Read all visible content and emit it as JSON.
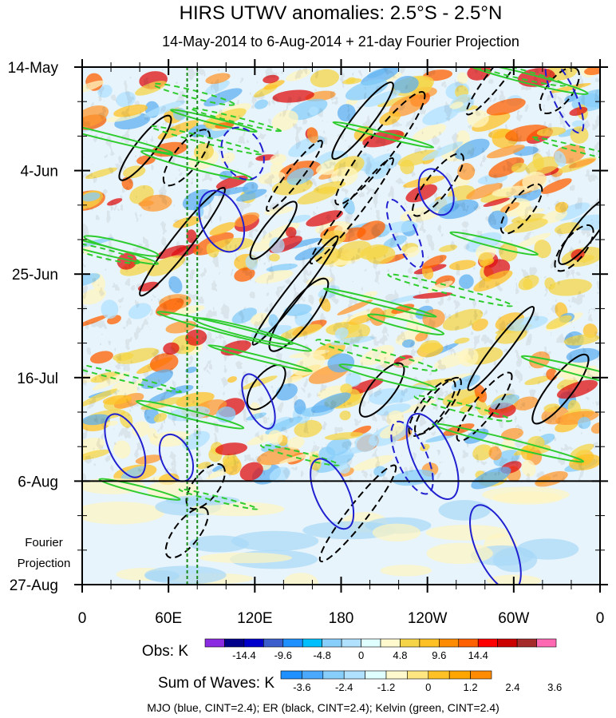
{
  "chart_data": {
    "type": "heatmap",
    "title": "HIRS UTWV anomalies: 2.5°S - 2.5°N",
    "subtitle": "14-May-2014 to 6-Aug-2014 + 21-day Fourier Projection",
    "y_ticks": [
      "14-May",
      "4-Jun",
      "25-Jun",
      "16-Jul",
      "6-Aug",
      "27-Aug"
    ],
    "y_tick_days": [
      0,
      21,
      42,
      63,
      84,
      105
    ],
    "x_ticks": [
      "0",
      "60E",
      "120E",
      "180",
      "120W",
      "60W",
      "0"
    ],
    "x_tick_lons": [
      0,
      60,
      120,
      180,
      240,
      300,
      360
    ],
    "xlim": [
      0,
      360
    ],
    "ylim_days": [
      0,
      105
    ],
    "projection_start_day": 84,
    "projection_label": [
      "Fourier",
      "Projection"
    ],
    "dashed_line_lons": [
      73,
      80
    ],
    "obs_colorbar": {
      "label": "Obs: K",
      "tick_labels": [
        "-14.4",
        "-9.6",
        "-4.8",
        "0",
        "4.8",
        "9.6",
        "14.4"
      ],
      "colors": [
        "#8a2be2",
        "#00008b",
        "#0000cd",
        "#3a5fcd",
        "#1e90ff",
        "#00bfff",
        "#87cefa",
        "#b0e2ff",
        "#e0ffff",
        "#fffacd",
        "#f5d547",
        "#ffc125",
        "#ff8c00",
        "#ff6000",
        "#ff0000",
        "#cd0000",
        "#a52a2a",
        "#ff69b4"
      ]
    },
    "waves_colorbar": {
      "label": "Sum of Waves: K",
      "tick_labels": [
        "-3.6",
        "-2.4",
        "-1.2",
        "0",
        "1.2",
        "2.4",
        "3.6"
      ],
      "colors": [
        "#1e90ff",
        "#4aa8ff",
        "#87cefa",
        "#b0e2ff",
        "#e0ffff",
        "#fffacd",
        "#ffe680",
        "#ffc125",
        "#ffa500",
        "#ff8c00"
      ]
    },
    "footer": "MJO (blue, CINT=2.4); ER (black, CINT=2.4); Kelvin (green, CINT=2.4)"
  }
}
